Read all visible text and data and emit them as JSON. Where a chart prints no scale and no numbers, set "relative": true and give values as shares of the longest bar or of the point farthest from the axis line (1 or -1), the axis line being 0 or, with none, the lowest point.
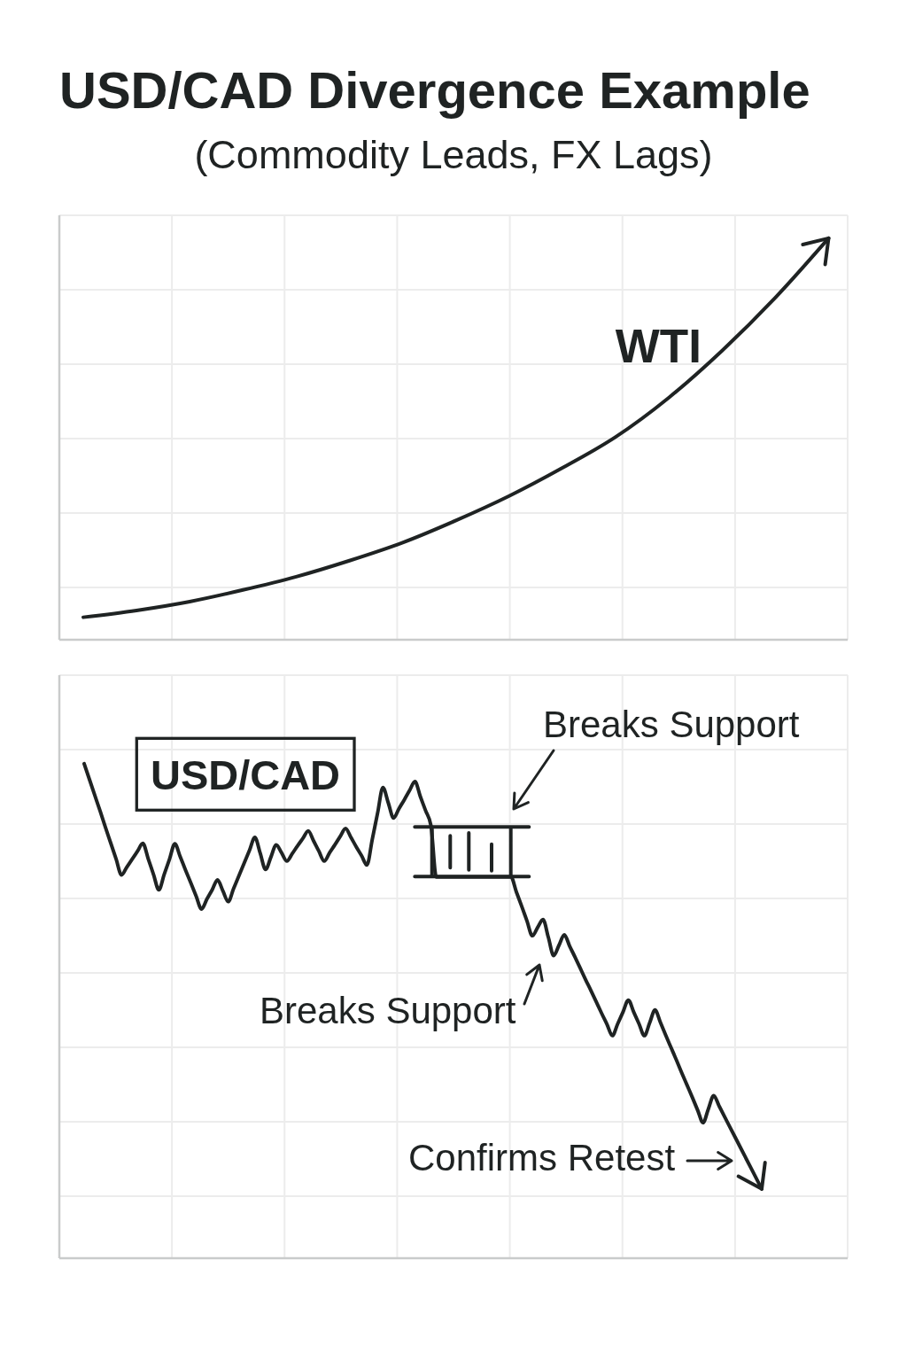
{
  "chart_data": [
    {
      "type": "line",
      "title": "USD/CAD Divergence Example",
      "subtitle": "(Commodity Leads, FX Lags)",
      "relative": true,
      "grid": true,
      "categories": [
        null,
        null,
        null,
        null,
        null,
        null,
        null,
        null,
        null,
        null,
        null,
        null,
        null,
        null,
        null
      ],
      "series": [
        {
          "name": "WTI",
          "color": "#1f2323",
          "values": [
            0.056,
            0.073,
            0.095,
            0.124,
            0.157,
            0.197,
            0.242,
            0.297,
            0.358,
            0.428,
            0.505,
            0.603,
            0.72,
            0.852,
            1
          ]
        }
      ]
    },
    {
      "type": "line",
      "relative": true,
      "grid": true,
      "categories": [
        null,
        null,
        null,
        null,
        null,
        null,
        null,
        null,
        null,
        null,
        null,
        null,
        null,
        null,
        null,
        null,
        null,
        null,
        null,
        null,
        null,
        null,
        null,
        null,
        null,
        null,
        null,
        null,
        null,
        null,
        null,
        null,
        null,
        null,
        null,
        null,
        null,
        null,
        null,
        null,
        null,
        null,
        null,
        null,
        null,
        null,
        null,
        null,
        null,
        null,
        null,
        null,
        null,
        null,
        null,
        null,
        null,
        null,
        null,
        null,
        null,
        null,
        null,
        null,
        null,
        null,
        null,
        null,
        null,
        null,
        null,
        null,
        null,
        null,
        null,
        null,
        null,
        null,
        null,
        null,
        null,
        null,
        null,
        null,
        null,
        null,
        null,
        null,
        null,
        null,
        null,
        null,
        null,
        null,
        null,
        null,
        null,
        null,
        null,
        null,
        null,
        null,
        null,
        null,
        null,
        null,
        null,
        null,
        null,
        null,
        null,
        null,
        null,
        null,
        null,
        null,
        null,
        null,
        null,
        null,
        null,
        null,
        null,
        null,
        null,
        null,
        null,
        null
      ],
      "series": [
        {
          "name": "USD/CAD",
          "color": "#1f2323",
          "values": [
            1,
            0.968,
            0.936,
            0.904,
            0.871,
            0.839,
            0.807,
            0.775,
            0.791,
            0.807,
            0.823,
            0.839,
            0.808,
            0.776,
            0.745,
            0.776,
            0.807,
            0.838,
            0.812,
            0.785,
            0.759,
            0.732,
            0.706,
            0.726,
            0.745,
            0.765,
            0.743,
            0.721,
            0.747,
            0.773,
            0.799,
            0.825,
            0.851,
            0.819,
            0.786,
            0.811,
            0.836,
            0.82,
            0.803,
            0.818,
            0.834,
            0.849,
            0.864,
            0.844,
            0.823,
            0.803,
            0.82,
            0.836,
            0.853,
            0.869,
            0.851,
            0.832,
            0.814,
            0.795,
            0.847,
            0.9,
            0.952,
            0.921,
            0.89,
            0.909,
            0.927,
            0.946,
            0.964,
            0.934,
            0.905,
            0.875,
            0.771,
            0.771,
            0.771,
            0.771,
            0.771,
            0.771,
            0.771,
            0.771,
            0.771,
            0.771,
            0.771,
            0.771,
            0.771,
            0.771,
            0.771,
            0.741,
            0.712,
            0.682,
            0.652,
            0.669,
            0.685,
            0.649,
            0.612,
            0.633,
            0.654,
            0.631,
            0.609,
            0.586,
            0.563,
            0.541,
            0.518,
            0.495,
            0.473,
            0.45,
            0.474,
            0.498,
            0.522,
            0.498,
            0.474,
            0.45,
            0.476,
            0.502,
            0.477,
            0.451,
            0.426,
            0.401,
            0.375,
            0.35,
            0.325,
            0.299,
            0.274,
            0.302,
            0.329,
            0.308,
            0.287,
            0.266,
            0.245,
            0.224,
            0.203,
            0.182,
            0.161,
            0.14
          ]
        }
      ],
      "annotations": [
        "Breaks Support",
        "Breaks Support",
        "Confirms Retest"
      ]
    }
  ]
}
